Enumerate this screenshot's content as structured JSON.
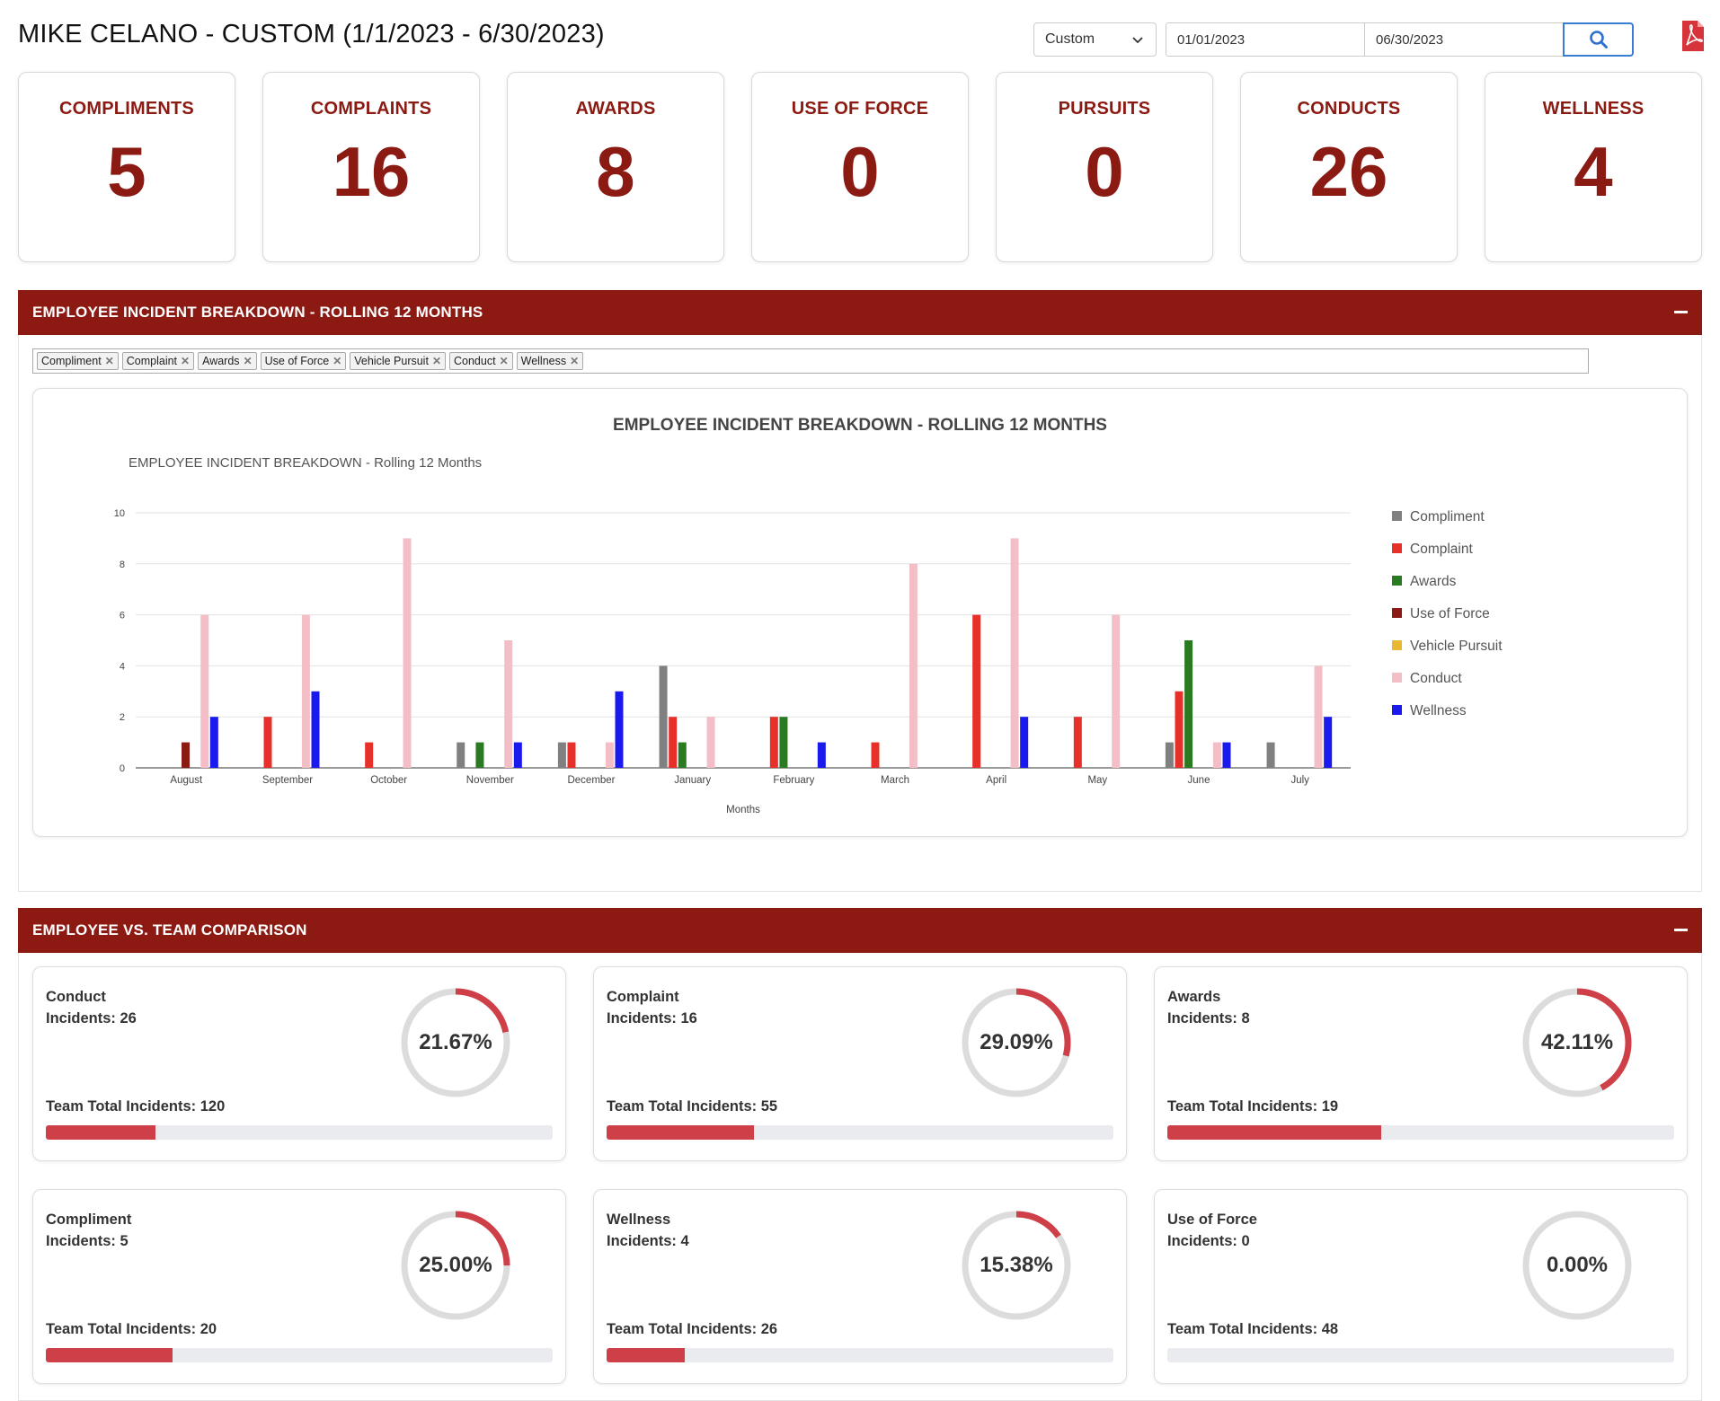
{
  "header": {
    "title": "MIKE CELANO - CUSTOM (1/1/2023 - 6/30/2023)",
    "range_select": "Custom",
    "start_date": "01/01/2023",
    "end_date": "06/30/2023",
    "icons": {
      "search": "search-icon",
      "pdf": "pdf-icon",
      "dropdown": "chevron-down-icon"
    }
  },
  "stats": [
    {
      "label": "COMPLIMENTS",
      "value": "5"
    },
    {
      "label": "COMPLAINTS",
      "value": "16"
    },
    {
      "label": "AWARDS",
      "value": "8"
    },
    {
      "label": "USE OF FORCE",
      "value": "0"
    },
    {
      "label": "PURSUITS",
      "value": "0"
    },
    {
      "label": "CONDUCTS",
      "value": "26"
    },
    {
      "label": "WELLNESS",
      "value": "4"
    }
  ],
  "breakdown": {
    "header": "EMPLOYEE INCIDENT BREAKDOWN - ROLLING 12 MONTHS",
    "tags": [
      "Compliment",
      "Complaint",
      "Awards",
      "Use of Force",
      "Vehicle Pursuit",
      "Conduct",
      "Wellness"
    ],
    "chart_title": "EMPLOYEE INCIDENT BREAKDOWN - ROLLING 12 MONTHS",
    "chart_subtitle": "EMPLOYEE INCIDENT BREAKDOWN - Rolling 12 Months"
  },
  "chart_data": {
    "type": "bar",
    "title": "EMPLOYEE INCIDENT BREAKDOWN - ROLLING 12 MONTHS",
    "subtitle": "EMPLOYEE INCIDENT BREAKDOWN - Rolling 12 Months",
    "xlabel": "Months",
    "ylabel": "",
    "ylim": [
      0,
      10
    ],
    "yticks": [
      0,
      2,
      4,
      6,
      8,
      10
    ],
    "grid": true,
    "legend": "right",
    "categories": [
      "August",
      "September",
      "October",
      "November",
      "December",
      "January",
      "February",
      "March",
      "April",
      "May",
      "June",
      "July"
    ],
    "series": [
      {
        "name": "Compliment",
        "color": "#808080",
        "values": [
          0,
          0,
          0,
          1,
          1,
          4,
          0,
          0,
          0,
          0,
          1,
          1
        ]
      },
      {
        "name": "Complaint",
        "color": "#e8302a",
        "values": [
          0,
          2,
          1,
          0,
          1,
          2,
          2,
          1,
          6,
          2,
          3,
          0
        ]
      },
      {
        "name": "Awards",
        "color": "#2a7a22",
        "values": [
          0,
          0,
          0,
          1,
          0,
          1,
          2,
          0,
          0,
          0,
          5,
          0
        ]
      },
      {
        "name": "Use of Force",
        "color": "#8b1a12",
        "values": [
          1,
          0,
          0,
          0,
          0,
          0,
          0,
          0,
          0,
          0,
          0,
          0
        ]
      },
      {
        "name": "Vehicle Pursuit",
        "color": "#e8b830",
        "values": [
          0,
          0,
          0,
          0,
          0,
          0,
          0,
          0,
          0,
          0,
          0,
          0
        ]
      },
      {
        "name": "Conduct",
        "color": "#f4bec6",
        "values": [
          6,
          6,
          9,
          5,
          1,
          2,
          0,
          8,
          9,
          6,
          1,
          4
        ]
      },
      {
        "name": "Wellness",
        "color": "#1a1aee",
        "values": [
          2,
          3,
          0,
          1,
          3,
          0,
          1,
          0,
          2,
          0,
          1,
          2
        ]
      }
    ]
  },
  "comparison": {
    "header": "EMPLOYEE VS. TEAM COMPARISON",
    "cards": [
      {
        "name": "Conduct",
        "incidents": "Incidents: 26",
        "team": "Team Total Incidents: 120",
        "percent": "21.67%",
        "fraction": 0.2167
      },
      {
        "name": "Complaint",
        "incidents": "Incidents: 16",
        "team": "Team Total Incidents: 55",
        "percent": "29.09%",
        "fraction": 0.2909
      },
      {
        "name": "Awards",
        "incidents": "Incidents: 8",
        "team": "Team Total Incidents: 19",
        "percent": "42.11%",
        "fraction": 0.4211
      },
      {
        "name": "Compliment",
        "incidents": "Incidents: 5",
        "team": "Team Total Incidents: 20",
        "percent": "25.00%",
        "fraction": 0.25
      },
      {
        "name": "Wellness",
        "incidents": "Incidents: 4",
        "team": "Team Total Incidents: 26",
        "percent": "15.38%",
        "fraction": 0.1538
      },
      {
        "name": "Use of Force",
        "incidents": "Incidents: 0",
        "team": "Team Total Incidents: 48",
        "percent": "0.00%",
        "fraction": 0.0
      }
    ]
  },
  "colors": {
    "brand": "#8d1a12",
    "accent": "#cf3f48",
    "link": "#3a7bd5"
  }
}
